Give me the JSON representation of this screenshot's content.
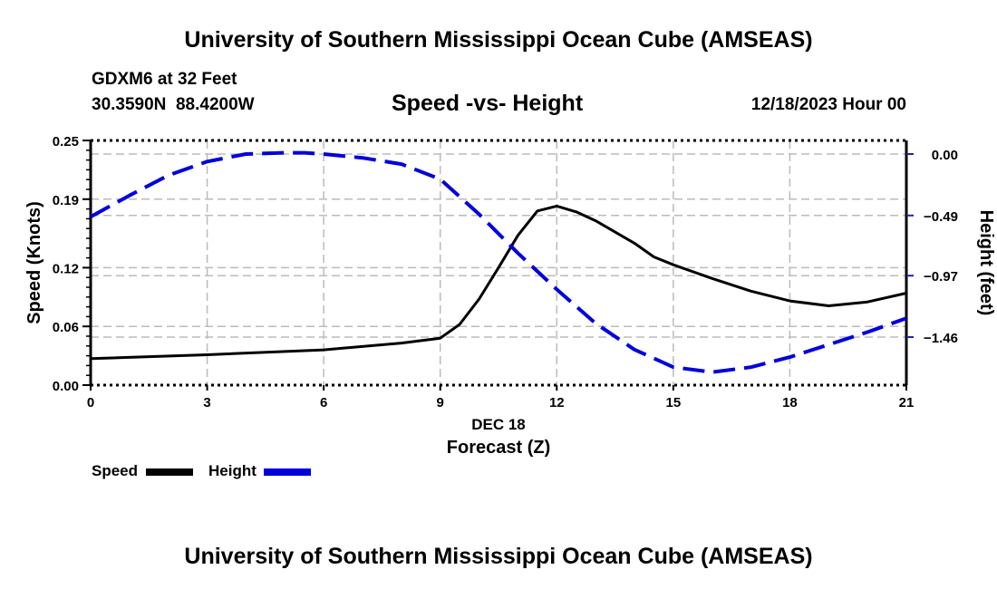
{
  "header": {
    "title": "University of Southern Mississippi Ocean Cube (AMSEAS)",
    "station": "GDXM6 at 32 Feet",
    "coords": "30.3590N  88.4200W",
    "subtitle": "Speed -vs- Height",
    "datetime": "12/18/2023 Hour 00"
  },
  "footer": {
    "title": "University of Southern Mississippi Ocean Cube (AMSEAS)"
  },
  "chart_data": {
    "type": "line",
    "title": "Speed -vs- Height",
    "xlabel": "Forecast (Z)",
    "xdate_label": "DEC 18",
    "ylabel": "Speed (Knots)",
    "y2label": "Height (feet)",
    "xlim": [
      0,
      21
    ],
    "ylim": [
      0,
      0.25
    ],
    "y2_ticks": [
      0.0,
      -0.49,
      -0.97,
      -1.46
    ],
    "y2_tick_labels": [
      "0.00",
      "−0.49",
      "−0.97",
      "−1.46"
    ],
    "x_ticks": [
      0,
      3,
      6,
      9,
      12,
      15,
      18,
      21
    ],
    "x_tick_labels": [
      "0",
      "3",
      "6",
      "9",
      "12",
      "15",
      "18",
      "21"
    ],
    "y_ticks": [
      0.0,
      0.06,
      0.12,
      0.19,
      0.25
    ],
    "y_tick_labels": [
      "0.00",
      "0.06",
      "0.12",
      "0.19",
      "0.25"
    ],
    "grid": true,
    "legend": "bottom-left",
    "series": [
      {
        "name": "Speed",
        "color": "#000000",
        "style": "solid",
        "axis": "left",
        "x": [
          0,
          3,
          6,
          8,
          9,
          9.5,
          10,
          10.5,
          11,
          11.5,
          12,
          12.5,
          13,
          14,
          14.5,
          15,
          16,
          17,
          18,
          19,
          20,
          21
        ],
        "values": [
          0.027,
          0.031,
          0.036,
          0.043,
          0.048,
          0.062,
          0.088,
          0.12,
          0.153,
          0.178,
          0.183,
          0.177,
          0.168,
          0.145,
          0.131,
          0.123,
          0.109,
          0.096,
          0.086,
          0.081,
          0.085,
          0.094
        ]
      },
      {
        "name": "Height",
        "color": "#0000dd",
        "style": "dashed",
        "axis": "right",
        "x": [
          0,
          1,
          2,
          3,
          4,
          5,
          5.5,
          6,
          7,
          8,
          9,
          10,
          11,
          12,
          13,
          14,
          15,
          16,
          17,
          18,
          19,
          20,
          21
        ],
        "values": [
          -0.5,
          -0.33,
          -0.17,
          -0.06,
          0.0,
          0.01,
          0.01,
          0.0,
          -0.03,
          -0.08,
          -0.2,
          -0.48,
          -0.79,
          -1.08,
          -1.35,
          -1.56,
          -1.7,
          -1.74,
          -1.7,
          -1.62,
          -1.52,
          -1.42,
          -1.31
        ]
      }
    ]
  },
  "legend": {
    "speed_label": "Speed",
    "height_label": "Height"
  }
}
